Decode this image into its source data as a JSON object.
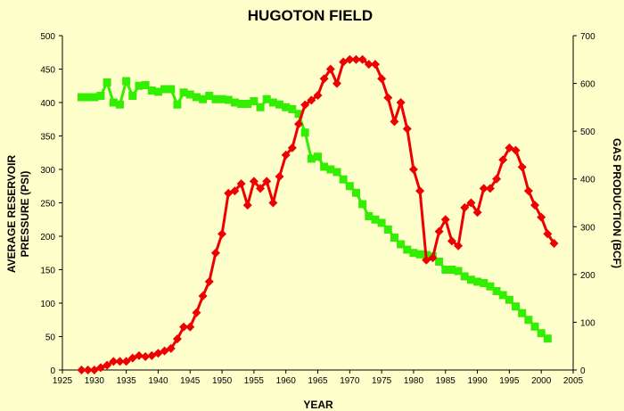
{
  "chart_data": {
    "type": "line",
    "title": "HUGOTON FIELD",
    "xlabel": "YEAR",
    "ylabel_left": "AVERAGE RESERVOIR PRESSURE (PSI)",
    "ylabel_left_lines": [
      "AVERAGE RESERVOIR",
      "PRESSURE (PSI)"
    ],
    "ylabel_right": "GAS PRODUCTION (BCF)",
    "xlim": [
      1925,
      2005
    ],
    "ylim_left": [
      0,
      500
    ],
    "ylim_right": [
      0,
      700
    ],
    "x_ticks": [
      "1925",
      "1930",
      "1935",
      "1940",
      "1945",
      "1950",
      "1955",
      "1960",
      "1965",
      "1970",
      "1975",
      "1980",
      "1985",
      "1990",
      "1995",
      "2000",
      "2005"
    ],
    "y_left_ticks": [
      "0",
      "50",
      "100",
      "150",
      "200",
      "250",
      "300",
      "350",
      "400",
      "450",
      "500"
    ],
    "y_right_ticks": [
      "0",
      "100",
      "200",
      "300",
      "400",
      "500",
      "600",
      "700"
    ],
    "grid": false,
    "background": "#ffffcc",
    "series": [
      {
        "axis": "left",
        "color": "#33ee00",
        "marker": "square",
        "x": [
          1928,
          1929,
          1930,
          1931,
          1932,
          1933,
          1934,
          1935,
          1936,
          1937,
          1938,
          1939,
          1940,
          1941,
          1942,
          1943,
          1944,
          1945,
          1946,
          1947,
          1948,
          1949,
          1950,
          1951,
          1952,
          1953,
          1954,
          1955,
          1956,
          1957,
          1958,
          1959,
          1960,
          1961,
          1962,
          1963,
          1964,
          1965,
          1966,
          1967,
          1968,
          1969,
          1970,
          1971,
          1972,
          1973,
          1974,
          1975,
          1976,
          1977,
          1978,
          1979,
          1980,
          1981,
          1982,
          1983,
          1984,
          1985,
          1986,
          1987,
          1988,
          1989,
          1990,
          1991,
          1992,
          1993,
          1994,
          1995,
          1996,
          1997,
          1998,
          1999,
          2000,
          2001
        ],
        "values": [
          408,
          408,
          408,
          410,
          430,
          400,
          397,
          432,
          410,
          425,
          426,
          418,
          416,
          420,
          420,
          397,
          415,
          412,
          408,
          405,
          410,
          405,
          405,
          404,
          400,
          398,
          398,
          402,
          393,
          405,
          400,
          397,
          393,
          390,
          383,
          355,
          316,
          319,
          304,
          300,
          296,
          285,
          275,
          265,
          248,
          230,
          225,
          220,
          210,
          198,
          188,
          180,
          175,
          173,
          172,
          170,
          162,
          150,
          150,
          148,
          140,
          135,
          132,
          130,
          125,
          118,
          112,
          105,
          95,
          85,
          75,
          65,
          55,
          47
        ]
      },
      {
        "axis": "right",
        "color": "#ee0000",
        "marker": "diamond",
        "x": [
          1928,
          1929,
          1930,
          1931,
          1932,
          1933,
          1934,
          1935,
          1936,
          1937,
          1938,
          1939,
          1940,
          1941,
          1942,
          1943,
          1944,
          1945,
          1946,
          1947,
          1948,
          1949,
          1950,
          1951,
          1952,
          1953,
          1954,
          1955,
          1956,
          1957,
          1958,
          1959,
          1960,
          1961,
          1962,
          1963,
          1964,
          1965,
          1966,
          1967,
          1968,
          1969,
          1970,
          1971,
          1972,
          1973,
          1974,
          1975,
          1976,
          1977,
          1978,
          1979,
          1980,
          1981,
          1982,
          1983,
          1984,
          1985,
          1986,
          1987,
          1988,
          1989,
          1990,
          1991,
          1992,
          1993,
          1994,
          1995,
          1996,
          1997,
          1998,
          1999,
          2000,
          2001,
          2002
        ],
        "values": [
          0,
          0,
          0,
          5,
          10,
          18,
          18,
          18,
          25,
          30,
          28,
          30,
          35,
          40,
          45,
          65,
          90,
          90,
          120,
          155,
          185,
          245,
          285,
          370,
          375,
          390,
          345,
          395,
          380,
          395,
          350,
          405,
          450,
          465,
          515,
          555,
          565,
          575,
          610,
          630,
          600,
          645,
          650,
          650,
          650,
          640,
          640,
          610,
          570,
          520,
          560,
          505,
          420,
          375,
          230,
          235,
          290,
          315,
          270,
          260,
          340,
          350,
          330,
          380,
          380,
          400,
          440,
          465,
          460,
          425,
          375,
          345,
          320,
          285,
          265
        ]
      }
    ]
  }
}
